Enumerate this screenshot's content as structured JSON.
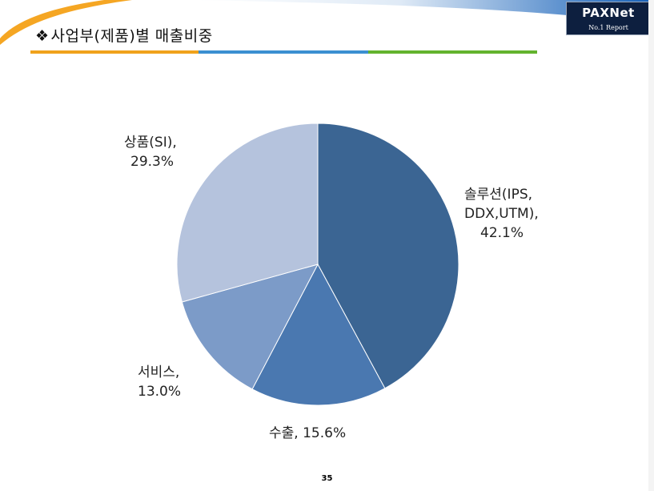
{
  "slide": {
    "title_bullet": "❖",
    "title": "사업부(제품)별 매출비중",
    "page_number": "35"
  },
  "logo": {
    "word": "PAXNet",
    "sub": "No.1 Report"
  },
  "colors": {
    "header_swoosh": "#f5a623",
    "header_blue": "#1e6fc6",
    "rule_orange": "#f0a21c",
    "rule_blue": "#3b8fd1",
    "rule_green": "#63b32e"
  },
  "chart_data": {
    "type": "pie",
    "title": "",
    "start_angle_deg": 0,
    "direction": "clockwise",
    "slices": [
      {
        "label": "솔루션(IPS, DDX,UTM)",
        "value": 42.1,
        "display_lines": [
          "솔루션(IPS,",
          "DDX,UTM),",
          "42.1%"
        ],
        "color": "#3b6593"
      },
      {
        "label": "수출",
        "value": 15.6,
        "display_lines": [
          "수출, 15.6%"
        ],
        "color": "#4a78b0"
      },
      {
        "label": "서비스",
        "value": 13.0,
        "display_lines": [
          "서비스,",
          "13.0%"
        ],
        "color": "#7c9bc8"
      },
      {
        "label": "상품(SI)",
        "value": 29.3,
        "display_lines": [
          "상품(SI),",
          "29.3%"
        ],
        "color": "#b5c3dd"
      }
    ]
  }
}
